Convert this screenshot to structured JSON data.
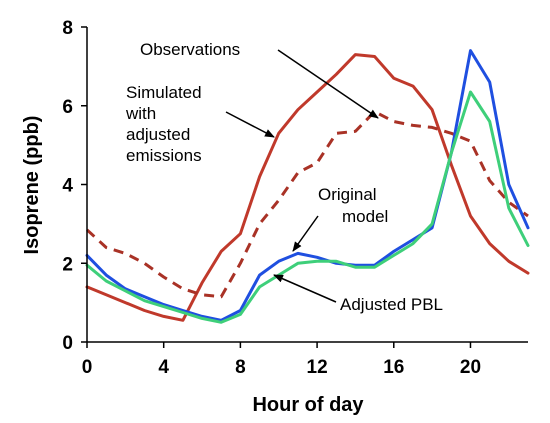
{
  "chart_data": {
    "type": "line",
    "xlabel": "Hour of day",
    "ylabel": "Isoprene (ppb)",
    "xlim": [
      0,
      23
    ],
    "ylim": [
      0,
      8
    ],
    "x_ticks": [
      0,
      4,
      8,
      12,
      16,
      20
    ],
    "y_ticks": [
      0,
      2,
      4,
      6,
      8
    ],
    "grid": false,
    "legend": "none",
    "x": [
      0,
      1,
      2,
      3,
      4,
      5,
      6,
      7,
      8,
      9,
      10,
      11,
      12,
      13,
      14,
      15,
      16,
      17,
      18,
      19,
      20,
      21,
      22,
      23
    ],
    "series": [
      {
        "name": "Observations",
        "color": "#c0392b",
        "style": "solid",
        "values": [
          1.4,
          1.2,
          1.0,
          0.8,
          0.65,
          0.55,
          1.5,
          2.3,
          2.75,
          4.2,
          5.3,
          5.9,
          6.35,
          6.8,
          7.3,
          7.25,
          6.7,
          6.5,
          5.9,
          4.5,
          3.2,
          2.5,
          2.05,
          1.75
        ]
      },
      {
        "name": "Simulated with adjusted emissions",
        "color": "#a93226",
        "style": "dashed",
        "values": [
          2.85,
          2.4,
          2.25,
          2.0,
          1.65,
          1.35,
          1.2,
          1.15,
          2.0,
          3.0,
          3.6,
          4.3,
          4.55,
          5.3,
          5.35,
          5.85,
          5.6,
          5.5,
          5.45,
          5.3,
          5.1,
          4.1,
          3.55,
          3.2
        ]
      },
      {
        "name": "Original model",
        "color": "#1f4fe0",
        "style": "solid",
        "values": [
          2.2,
          1.7,
          1.35,
          1.15,
          0.95,
          0.8,
          0.65,
          0.55,
          0.8,
          1.7,
          2.05,
          2.25,
          2.15,
          2.0,
          1.95,
          1.95,
          2.3,
          2.6,
          2.9,
          4.8,
          7.4,
          6.6,
          4.0,
          2.9
        ]
      },
      {
        "name": "Adjusted PBL",
        "color": "#3ecf7a",
        "style": "solid",
        "values": [
          1.95,
          1.55,
          1.3,
          1.05,
          0.9,
          0.75,
          0.6,
          0.5,
          0.7,
          1.4,
          1.7,
          2.0,
          2.05,
          2.05,
          1.9,
          1.9,
          2.2,
          2.5,
          3.0,
          4.8,
          6.35,
          5.6,
          3.4,
          2.45
        ]
      }
    ],
    "annotations": [
      {
        "text": "Observations"
      },
      {
        "text": "Simulated with adjusted emissions",
        "lines": [
          "Simulated",
          "with",
          "adjusted",
          "emissions"
        ]
      },
      {
        "text": "Original model",
        "lines": [
          "Original",
          "model"
        ]
      },
      {
        "text": "Adjusted PBL"
      }
    ]
  }
}
